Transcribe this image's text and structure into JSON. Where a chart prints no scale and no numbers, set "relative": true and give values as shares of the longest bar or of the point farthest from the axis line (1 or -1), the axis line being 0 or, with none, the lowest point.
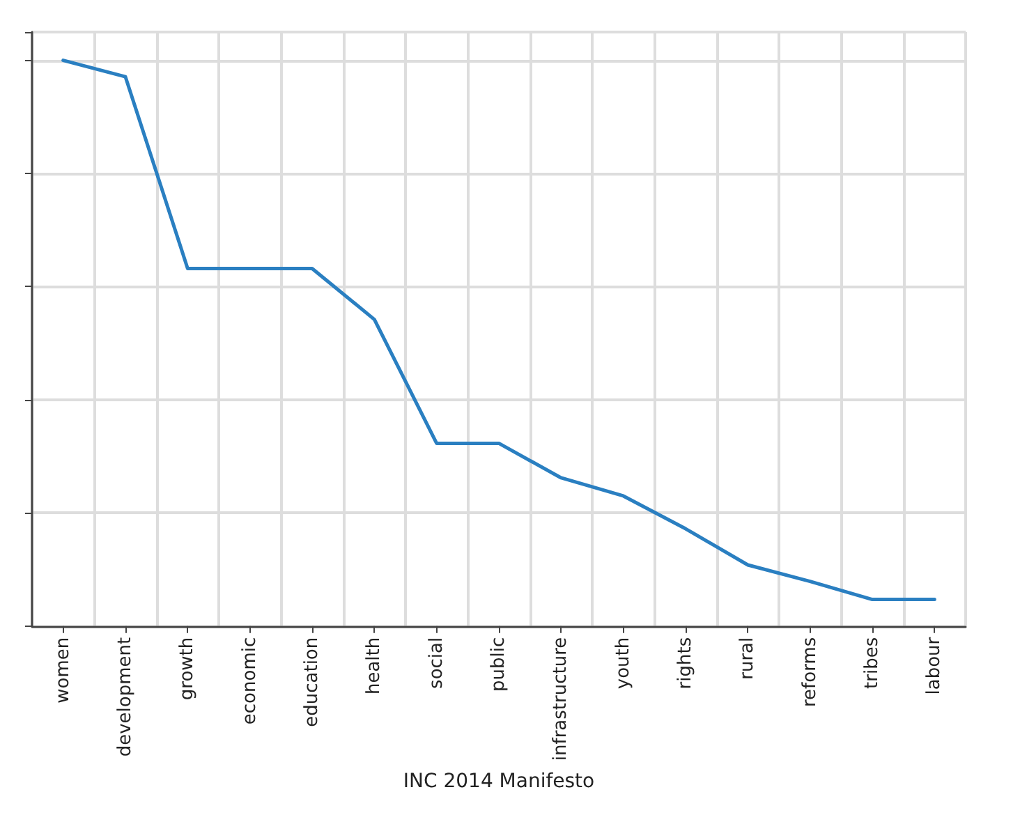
{
  "chart_data": {
    "type": "line",
    "xlabel": "INC 2014 Manifesto",
    "relative": true,
    "grid": true,
    "marker": "none",
    "line_style": "solid",
    "categories": [
      "women",
      "development",
      "growth",
      "economic",
      "education",
      "health",
      "social",
      "public",
      "infrastructure",
      "youth",
      "rights",
      "rural",
      "reforms",
      "tribes",
      "labour"
    ],
    "series": [
      {
        "color": "#2a7fc1",
        "values": [
          1,
          0.971,
          0.632,
          0.632,
          0.632,
          0.542,
          0.323,
          0.323,
          0.262,
          0.23,
          0.172,
          0.108,
          0.079,
          0.047,
          0.047
        ]
      }
    ]
  }
}
